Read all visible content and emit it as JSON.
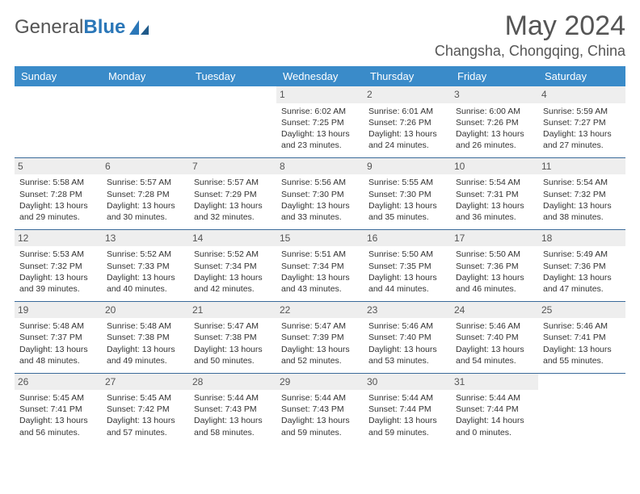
{
  "brand": {
    "part1": "General",
    "part2": "Blue"
  },
  "title": "May 2024",
  "location": "Changsha, Chongqing, China",
  "header_bg": "#3a8bc9",
  "header_fg": "#ffffff",
  "daynum_bg": "#eeeeee",
  "divider_color": "#3a6a9a",
  "text_color": "#333333",
  "body_bg": "#ffffff",
  "title_fontsize": 34,
  "location_fontsize": 18,
  "cell_fontsize": 10.5,
  "columns": [
    "Sunday",
    "Monday",
    "Tuesday",
    "Wednesday",
    "Thursday",
    "Friday",
    "Saturday"
  ],
  "weeks": [
    [
      {
        "blank": true
      },
      {
        "blank": true
      },
      {
        "blank": true
      },
      {
        "n": "1",
        "sr": "6:02 AM",
        "ss": "7:25 PM",
        "dl": "13 hours and 23 minutes."
      },
      {
        "n": "2",
        "sr": "6:01 AM",
        "ss": "7:26 PM",
        "dl": "13 hours and 24 minutes."
      },
      {
        "n": "3",
        "sr": "6:00 AM",
        "ss": "7:26 PM",
        "dl": "13 hours and 26 minutes."
      },
      {
        "n": "4",
        "sr": "5:59 AM",
        "ss": "7:27 PM",
        "dl": "13 hours and 27 minutes."
      }
    ],
    [
      {
        "n": "5",
        "sr": "5:58 AM",
        "ss": "7:28 PM",
        "dl": "13 hours and 29 minutes."
      },
      {
        "n": "6",
        "sr": "5:57 AM",
        "ss": "7:28 PM",
        "dl": "13 hours and 30 minutes."
      },
      {
        "n": "7",
        "sr": "5:57 AM",
        "ss": "7:29 PM",
        "dl": "13 hours and 32 minutes."
      },
      {
        "n": "8",
        "sr": "5:56 AM",
        "ss": "7:30 PM",
        "dl": "13 hours and 33 minutes."
      },
      {
        "n": "9",
        "sr": "5:55 AM",
        "ss": "7:30 PM",
        "dl": "13 hours and 35 minutes."
      },
      {
        "n": "10",
        "sr": "5:54 AM",
        "ss": "7:31 PM",
        "dl": "13 hours and 36 minutes."
      },
      {
        "n": "11",
        "sr": "5:54 AM",
        "ss": "7:32 PM",
        "dl": "13 hours and 38 minutes."
      }
    ],
    [
      {
        "n": "12",
        "sr": "5:53 AM",
        "ss": "7:32 PM",
        "dl": "13 hours and 39 minutes."
      },
      {
        "n": "13",
        "sr": "5:52 AM",
        "ss": "7:33 PM",
        "dl": "13 hours and 40 minutes."
      },
      {
        "n": "14",
        "sr": "5:52 AM",
        "ss": "7:34 PM",
        "dl": "13 hours and 42 minutes."
      },
      {
        "n": "15",
        "sr": "5:51 AM",
        "ss": "7:34 PM",
        "dl": "13 hours and 43 minutes."
      },
      {
        "n": "16",
        "sr": "5:50 AM",
        "ss": "7:35 PM",
        "dl": "13 hours and 44 minutes."
      },
      {
        "n": "17",
        "sr": "5:50 AM",
        "ss": "7:36 PM",
        "dl": "13 hours and 46 minutes."
      },
      {
        "n": "18",
        "sr": "5:49 AM",
        "ss": "7:36 PM",
        "dl": "13 hours and 47 minutes."
      }
    ],
    [
      {
        "n": "19",
        "sr": "5:48 AM",
        "ss": "7:37 PM",
        "dl": "13 hours and 48 minutes."
      },
      {
        "n": "20",
        "sr": "5:48 AM",
        "ss": "7:38 PM",
        "dl": "13 hours and 49 minutes."
      },
      {
        "n": "21",
        "sr": "5:47 AM",
        "ss": "7:38 PM",
        "dl": "13 hours and 50 minutes."
      },
      {
        "n": "22",
        "sr": "5:47 AM",
        "ss": "7:39 PM",
        "dl": "13 hours and 52 minutes."
      },
      {
        "n": "23",
        "sr": "5:46 AM",
        "ss": "7:40 PM",
        "dl": "13 hours and 53 minutes."
      },
      {
        "n": "24",
        "sr": "5:46 AM",
        "ss": "7:40 PM",
        "dl": "13 hours and 54 minutes."
      },
      {
        "n": "25",
        "sr": "5:46 AM",
        "ss": "7:41 PM",
        "dl": "13 hours and 55 minutes."
      }
    ],
    [
      {
        "n": "26",
        "sr": "5:45 AM",
        "ss": "7:41 PM",
        "dl": "13 hours and 56 minutes."
      },
      {
        "n": "27",
        "sr": "5:45 AM",
        "ss": "7:42 PM",
        "dl": "13 hours and 57 minutes."
      },
      {
        "n": "28",
        "sr": "5:44 AM",
        "ss": "7:43 PM",
        "dl": "13 hours and 58 minutes."
      },
      {
        "n": "29",
        "sr": "5:44 AM",
        "ss": "7:43 PM",
        "dl": "13 hours and 59 minutes."
      },
      {
        "n": "30",
        "sr": "5:44 AM",
        "ss": "7:44 PM",
        "dl": "13 hours and 59 minutes."
      },
      {
        "n": "31",
        "sr": "5:44 AM",
        "ss": "7:44 PM",
        "dl": "14 hours and 0 minutes."
      },
      {
        "blank": true
      }
    ]
  ],
  "labels": {
    "sunrise": "Sunrise:",
    "sunset": "Sunset:",
    "daylight": "Daylight:"
  }
}
